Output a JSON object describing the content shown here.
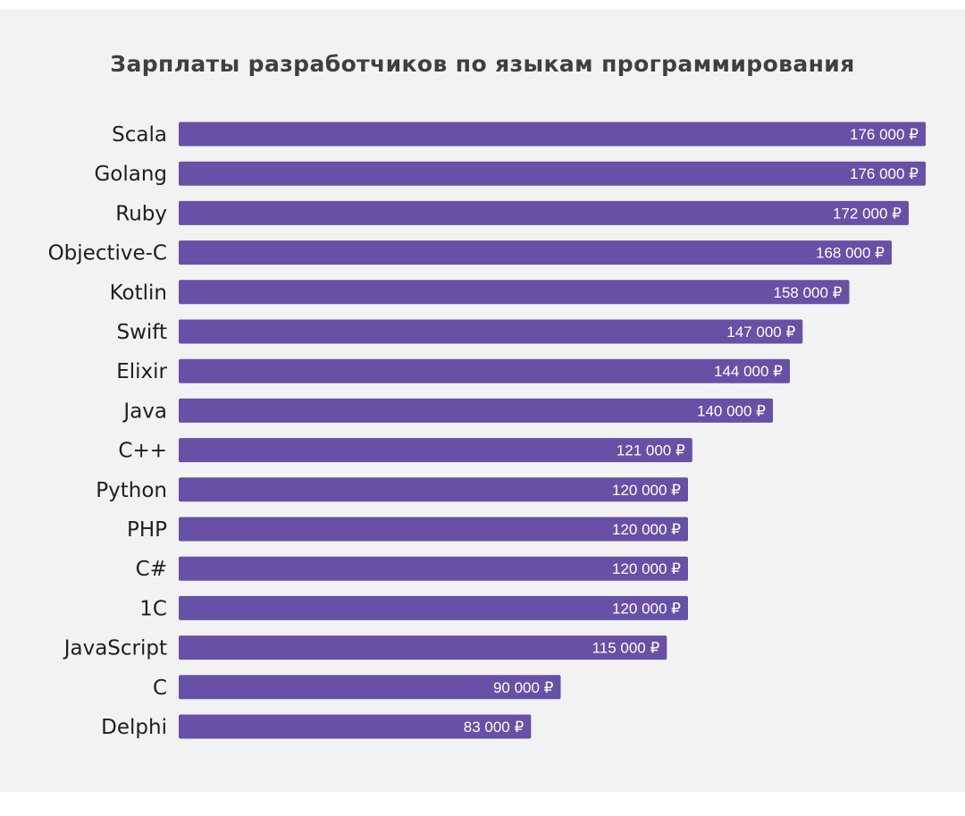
{
  "title": "Зарплаты разработчиков по языкам программирования",
  "colors": {
    "bar": "#6750a6",
    "background": "#f2f2f2",
    "label_text": "#1e1e1e",
    "value_text": "#ffffff"
  },
  "chart_data": {
    "type": "bar",
    "orientation": "horizontal",
    "title": "Зарплаты разработчиков по языкам программирования",
    "xlabel": "",
    "ylabel": "",
    "grid": false,
    "legend": "none",
    "xlim": [
      0,
      176000
    ],
    "categories": [
      "Scala",
      "Golang",
      "Ruby",
      "Objective-C",
      "Kotlin",
      "Swift",
      "Elixir",
      "Java",
      "C++",
      "Python",
      "PHP",
      "C#",
      "1C",
      "JavaScript",
      "C",
      "Delphi"
    ],
    "values": [
      176000,
      176000,
      172000,
      168000,
      158000,
      147000,
      144000,
      140000,
      121000,
      120000,
      120000,
      120000,
      120000,
      115000,
      90000,
      83000
    ],
    "value_labels": [
      "176 000 ₽",
      "176 000 ₽",
      "172 000 ₽",
      "168 000 ₽",
      "158 000 ₽",
      "147 000 ₽",
      "144 000 ₽",
      "140 000 ₽",
      "121 000 ₽",
      "120 000 ₽",
      "120 000 ₽",
      "120 000 ₽",
      "120 000 ₽",
      "115 000 ₽",
      "90 000 ₽",
      "83 000 ₽"
    ]
  }
}
